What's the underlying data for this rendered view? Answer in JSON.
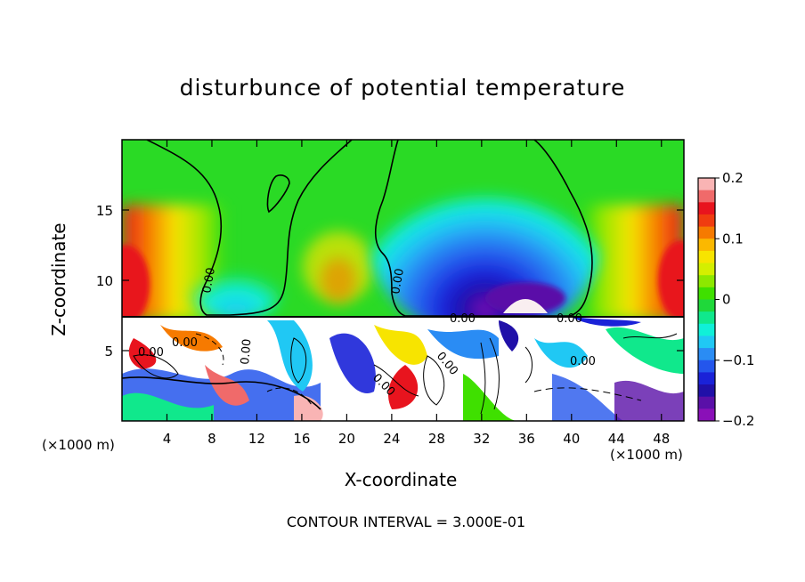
{
  "chart_data": {
    "type": "heatmap",
    "title": "disturbunce of potential temperature",
    "xlabel": "X-coordinate",
    "ylabel": "Z-coordinate",
    "x_unit_label": "(×1000 m)",
    "xlim": [
      0,
      50
    ],
    "ylim": [
      0,
      20
    ],
    "x_ticks": [
      4,
      8,
      12,
      16,
      20,
      24,
      28,
      32,
      36,
      40,
      44,
      48
    ],
    "y_ticks": [
      5,
      10,
      15
    ],
    "colorbar": {
      "range": [
        -0.2,
        0.2
      ],
      "tick_labels": [
        "0.2",
        "0.1",
        "0",
        "−0.1",
        "−0.2"
      ],
      "tick_values": [
        0.2,
        0.1,
        0,
        -0.1,
        -0.2
      ],
      "colors_top_to_bottom": [
        "#f9b4b4",
        "#f06a6a",
        "#e8141e",
        "#f03c10",
        "#f67a00",
        "#fbb800",
        "#f7e400",
        "#d4ef00",
        "#8de800",
        "#3fe000",
        "#1fd83a",
        "#10e88c",
        "#10f0d8",
        "#20c8f4",
        "#2a8cf4",
        "#2456ec",
        "#1a22d8",
        "#2010a8",
        "#5a10a8",
        "#8a10b8"
      ]
    },
    "contour_interval_text": "CONTOUR INTERVAL = 3.000E-01",
    "contour_labels": [
      "0.00",
      "0.00",
      "0.00",
      "0.00",
      "0.00",
      "0.00",
      "0.00",
      "0.00",
      "0.00",
      "0.00"
    ],
    "regions": {
      "upper_layer": {
        "z_range": [
          7.3,
          20
        ],
        "description_values": "smooth field: positive near x=0 and x=50, negative centered near x=33, minimum about -0.2 near z=8"
      },
      "lower_layer": {
        "z_range": [
          0,
          7.3
        ],
        "description_values": "turbulent field with values exceeding the color range (white)"
      }
    }
  }
}
